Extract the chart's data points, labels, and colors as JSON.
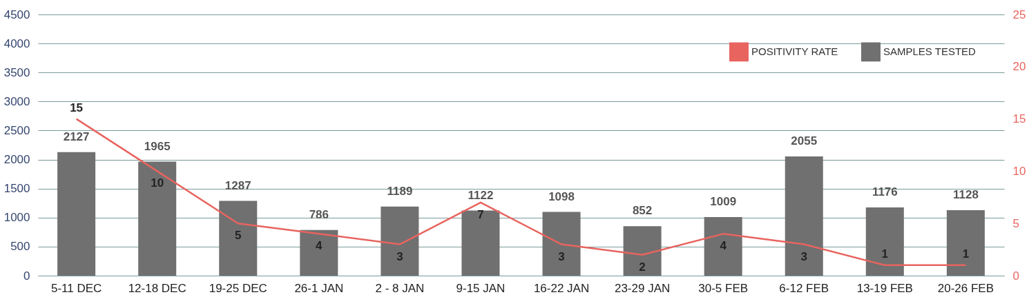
{
  "chart_data": {
    "type": "bar",
    "categories": [
      "5-11 DEC",
      "12-18 DEC",
      "19-25 DEC",
      "26-1 JAN",
      "2 - 8 JAN",
      "9-15 JAN",
      "16-22 JAN",
      "23-29 JAN",
      "30-5 FEB",
      "6-12 FEB",
      "13-19 FEB",
      "20-26 FEB"
    ],
    "series": [
      {
        "name": "POSITIVITY RATE",
        "type": "line",
        "axis": "y2",
        "color": "#e8645f",
        "values": [
          15,
          10,
          5,
          4,
          3,
          7,
          3,
          2,
          4,
          3,
          1,
          1
        ]
      },
      {
        "name": "SAMPLES TESTED",
        "color": "#707070",
        "values": [
          2127,
          1965,
          1287,
          786,
          1189,
          1122,
          1098,
          852,
          1009,
          2055,
          1176,
          1128
        ]
      }
    ],
    "ylim": [
      0,
      4500
    ],
    "yticks": [
      0,
      500,
      1000,
      1500,
      2000,
      2500,
      3000,
      3500,
      4000,
      4500
    ],
    "y2lim": [
      0,
      25
    ],
    "y2ticks": [
      0,
      5,
      10,
      15,
      20,
      25
    ],
    "grid": "y",
    "legend": "top right",
    "data_labels": true
  }
}
